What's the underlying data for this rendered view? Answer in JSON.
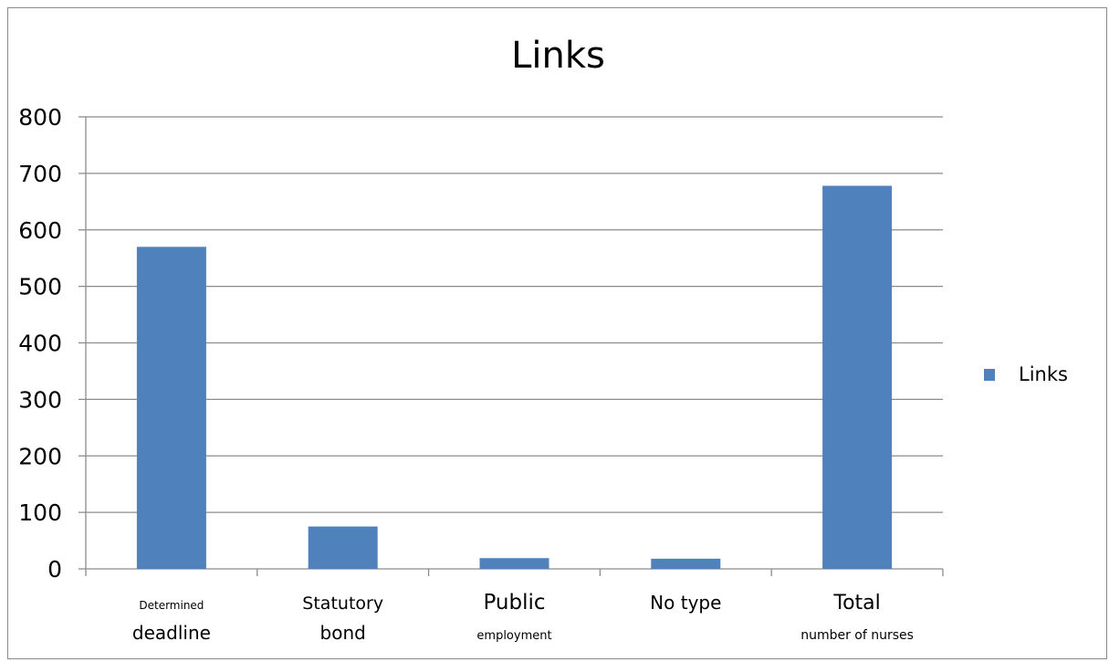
{
  "chart_data": {
    "type": "bar",
    "title": "Links",
    "categories": [
      [
        "Determined",
        "deadline"
      ],
      [
        "Statutory",
        "bond"
      ],
      [
        "Public",
        "employment"
      ],
      [
        "No type",
        ""
      ],
      [
        "Total",
        "number of nurses"
      ]
    ],
    "series": [
      {
        "name": "Links",
        "values": [
          570,
          75,
          19,
          18,
          678
        ]
      }
    ],
    "ylim": [
      0,
      800
    ],
    "yticks": [
      0,
      100,
      200,
      300,
      400,
      500,
      600,
      700,
      800
    ],
    "grid": true,
    "legend_position": "right",
    "bar_color": "#4f81bd",
    "xlabel": "",
    "ylabel": ""
  }
}
